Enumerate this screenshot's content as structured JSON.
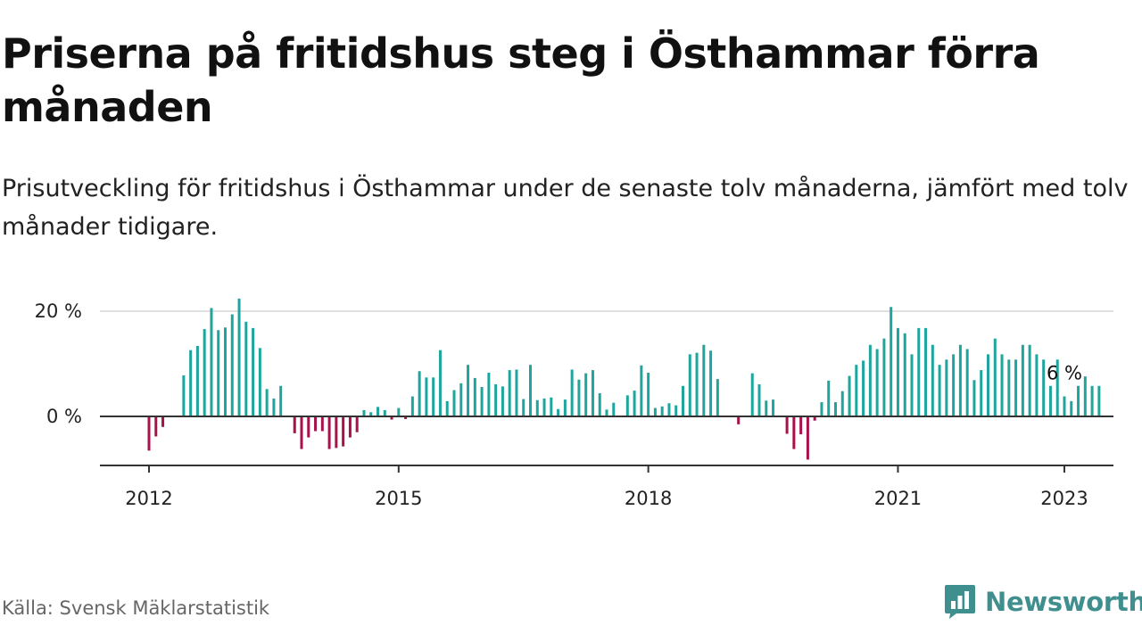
{
  "header": {
    "title": "Priserna på fritidshus steg i Östhammar förra månaden",
    "subtitle": "Prisutveckling för fritidshus i Östhammar under de senaste tolv månaderna, jämfört med tolv månader tidigare."
  },
  "footer": {
    "source": "Källa: Svensk Mäklarstatistik",
    "brand": "Newsworthy"
  },
  "colors": {
    "positive": "#1ea59d",
    "negative": "#a8114b",
    "brand": "#3f8f8e"
  },
  "chart_data": {
    "type": "bar",
    "title": "Priserna på fritidshus steg i Östhammar förra månaden",
    "subtitle": "Prisutveckling för fritidshus i Östhammar under de senaste tolv månaderna, jämfört med tolv månader tidigare.",
    "x_unit": "month",
    "x_start": "2012-01",
    "x_end": "2023-01",
    "y_unit": "%",
    "ylim": [
      -9,
      22
    ],
    "y_ticks": [
      0,
      20
    ],
    "y_tick_labels": [
      "0 %",
      "20 %"
    ],
    "x_ticks": [
      "2012-01",
      "2015-01",
      "2018-01",
      "2021-01",
      "2023-01"
    ],
    "x_tick_labels": [
      "2012",
      "2015",
      "2018",
      "2021",
      "2023"
    ],
    "grid": true,
    "legend": "none",
    "annotation": {
      "x": "2023-01",
      "text": "6 %"
    },
    "values": [
      -6.5,
      -3.8,
      -2.0,
      null,
      null,
      7.8,
      12.6,
      13.4,
      16.6,
      20.6,
      16.4,
      16.9,
      19.4,
      22.4,
      18.0,
      16.8,
      13.0,
      5.2,
      3.4,
      5.8,
      null,
      -3.2,
      -6.2,
      -4.0,
      -2.8,
      -2.8,
      -6.2,
      -6.0,
      -5.7,
      -4.0,
      -3.0,
      1.2,
      0.8,
      1.8,
      1.2,
      -0.6,
      1.6,
      -0.5,
      3.8,
      8.6,
      7.4,
      7.4,
      12.6,
      2.9,
      5.0,
      6.3,
      9.8,
      7.3,
      5.6,
      8.3,
      6.1,
      5.7,
      8.8,
      8.9,
      3.3,
      9.8,
      3.1,
      3.4,
      3.6,
      1.4,
      3.2,
      8.9,
      7.0,
      8.2,
      8.8,
      4.4,
      1.3,
      2.6,
      null,
      4.0,
      4.9,
      9.7,
      8.3,
      1.6,
      1.9,
      2.5,
      2.1,
      5.8,
      11.8,
      12.1,
      13.6,
      12.5,
      7.1,
      null,
      null,
      -1.5,
      null,
      8.2,
      6.1,
      3.0,
      3.2,
      null,
      -3.3,
      -6.2,
      -3.4,
      -8.2,
      -0.8,
      2.7,
      6.8,
      2.7,
      4.8,
      7.7,
      9.8,
      10.6,
      13.6,
      12.8,
      14.8,
      20.8,
      16.8,
      15.8,
      11.8,
      16.8,
      16.8,
      13.6,
      9.8,
      10.8,
      11.8,
      13.6,
      12.8,
      6.9,
      8.8,
      11.8,
      14.8,
      11.8,
      10.8,
      10.8,
      13.6,
      13.6,
      11.8,
      10.8,
      5.8,
      10.8,
      3.8,
      2.9,
      5.8,
      7.6,
      5.8,
      5.8
    ]
  }
}
